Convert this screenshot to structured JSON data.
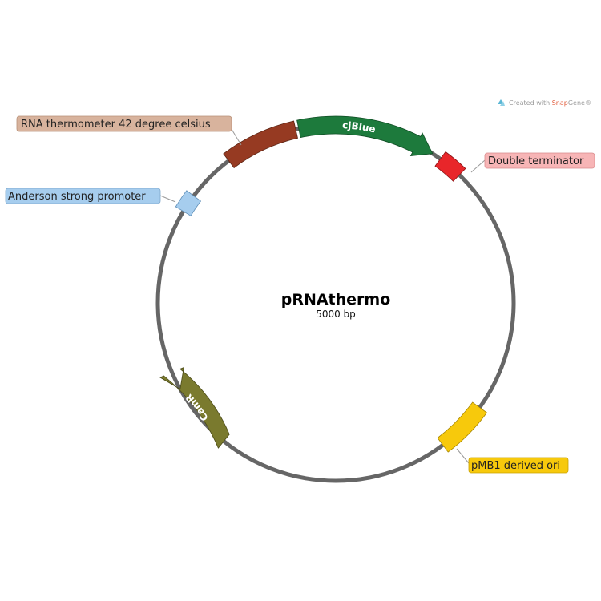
{
  "plasmid": {
    "name": "pRNAthermo",
    "size_label": "5000 bp"
  },
  "credit": {
    "prefix": "Created with ",
    "brand_snap": "Snap",
    "brand_gene": "Gene",
    "mark": "®"
  },
  "features": [
    {
      "id": "cjblue",
      "label": "cjBlue",
      "color": "#1d7a3c",
      "kind": "arrow-cw"
    },
    {
      "id": "double-terminator",
      "label": "Double terminator",
      "color": "#e8262a",
      "kind": "box",
      "label_bg": "#f7b5b6"
    },
    {
      "id": "pmb1-ori",
      "label": "pMB1 derived ori",
      "color": "#f7c90c",
      "kind": "box",
      "label_bg": "#f7c90c"
    },
    {
      "id": "camr",
      "label": "CamR",
      "color": "#7a7a2e",
      "kind": "arrow-ccw"
    },
    {
      "id": "anderson-promoter",
      "label": "Anderson strong promoter",
      "color": "#a6cdee",
      "kind": "box",
      "label_bg": "#a6cdee"
    },
    {
      "id": "rna-thermometer",
      "label": "RNA thermometer 42 degree celsius",
      "color": "#963a22",
      "kind": "box",
      "label_bg": "#d8b39d"
    }
  ],
  "colors": {
    "backbone": "#666666"
  }
}
